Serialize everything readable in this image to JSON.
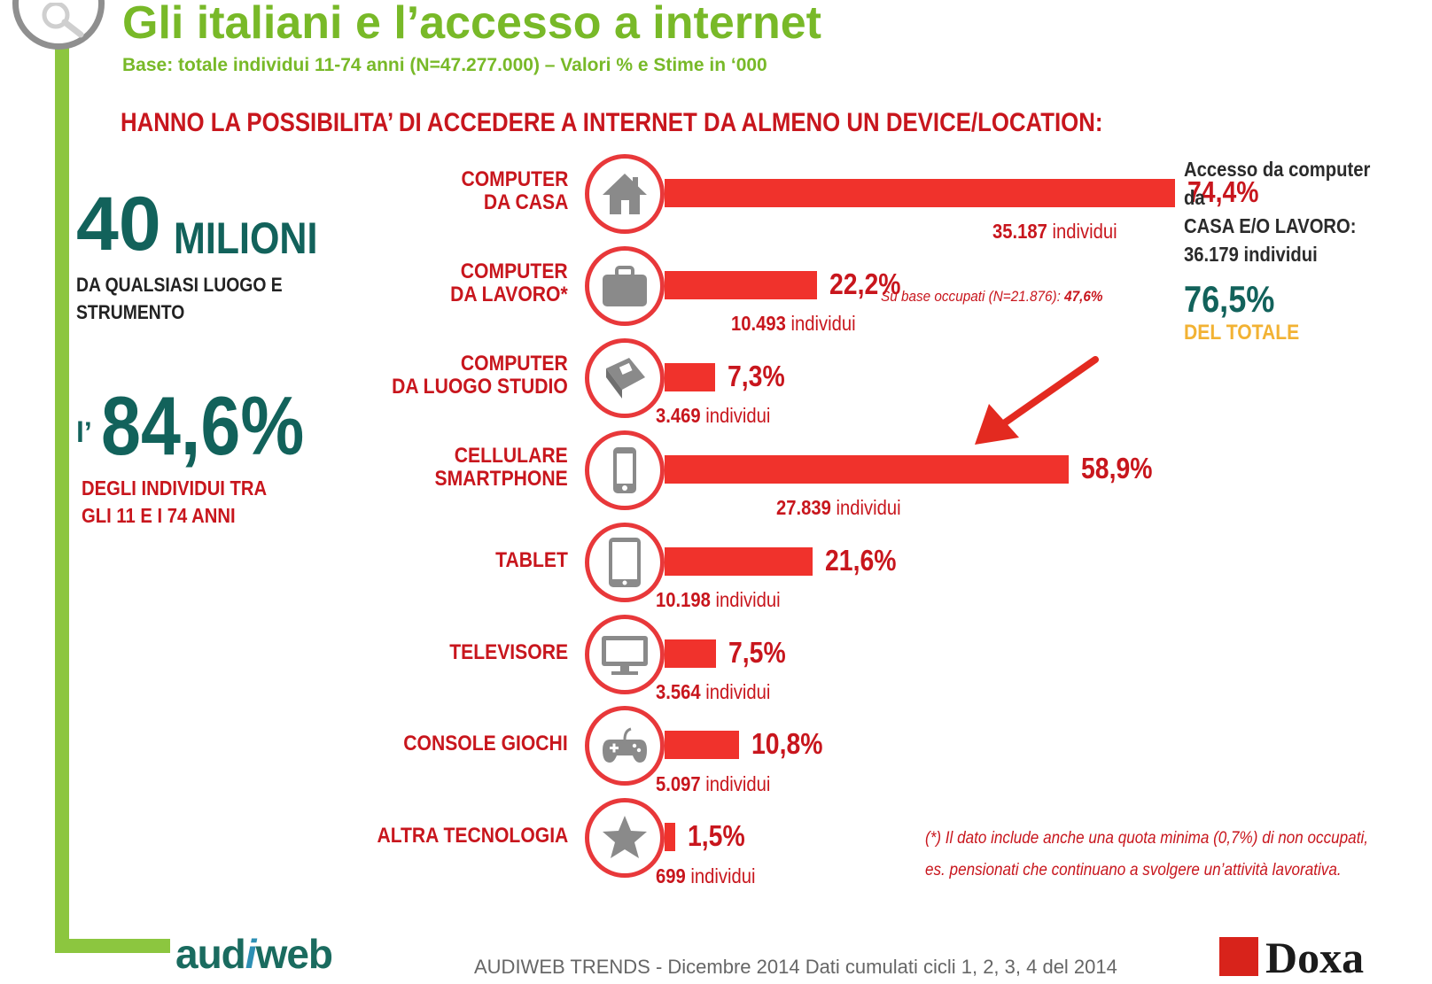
{
  "header": {
    "title": "Gli italiani e l’accesso a internet",
    "subtitle": "Base: totale individui 11-74 anni (N=47.277.000) – Valori % e Stime in ‘000",
    "headline": "HANNO LA POSSIBILITA’  DI ACCEDERE A INTERNET DA ALMENO UN DEVICE/LOCATION:"
  },
  "left_stats": {
    "big_number": "40",
    "big_unit": "MILIONI",
    "desc_line1": "DA QUALSIASI LUOGO E",
    "desc_line2": "STRUMENTO",
    "pct_prefix": "l’",
    "pct": "84,6%",
    "pct_desc_line1": "DEGLI INDIVIDUI TRA",
    "pct_desc_line2": "GLI 11 E I 74 ANNI"
  },
  "chart_data": {
    "type": "bar",
    "orientation": "horizontal",
    "xlim": [
      0,
      100
    ],
    "categories": [
      [
        "COMPUTER",
        "DA CASA"
      ],
      [
        "COMPUTER",
        "DA LAVORO*"
      ],
      [
        "COMPUTER",
        "DA LUOGO STUDIO"
      ],
      [
        "CELLULARE",
        "SMARTPHONE"
      ],
      [
        "TABLET"
      ],
      [
        "TELEVISORE"
      ],
      [
        "CONSOLE GIOCHI"
      ],
      [
        "ALTRA TECNOLOGIA"
      ]
    ],
    "values": [
      74.4,
      22.2,
      7.3,
      58.9,
      21.6,
      7.5,
      10.8,
      1.5
    ],
    "value_labels": [
      "74,4%",
      "22,2%",
      "7,3%",
      "58,9%",
      "21,6%",
      "7,5%",
      "10,8%",
      "1,5%"
    ],
    "individui": [
      "35.187",
      "10.493",
      "3.469",
      "27.839",
      "10.198",
      "3.564",
      "5.097",
      "699"
    ],
    "individui_unit": "individui",
    "icons": [
      "house-icon",
      "briefcase-icon",
      "book-icon",
      "smartphone-icon",
      "tablet-icon",
      "monitor-icon",
      "gamepad-icon",
      "star-icon"
    ],
    "note_lavoro": {
      "text": "Su base occupati (N=21.876):",
      "value": "47,6%"
    }
  },
  "right_info": {
    "line1": "Accesso da computer",
    "line2": "da",
    "line3": "CASA E/O LAVORO:",
    "line4": "36.179 individui",
    "pct": "76,5%",
    "pct_desc": "DEL TOTALE"
  },
  "footnote": {
    "line1": "(*) Il dato include anche una quota minima (0,7%) di non occupati,",
    "line2": "es. pensionati che continuano a svolgere un’attività lavorativa."
  },
  "footer": {
    "logo_left_a": "aud",
    "logo_left_i": "i",
    "logo_left_b": "web",
    "text": "AUDIWEB TRENDS - Dicembre 2014  Dati cumulati cicli 1, 2, 3, 4 del 2014",
    "logo_right": "Doxa"
  },
  "colors": {
    "bar": "#f0322c",
    "accent_red": "#c8161d",
    "accent_green": "#78b928",
    "accent_teal": "#12625b",
    "accent_orange": "#f2b233"
  }
}
